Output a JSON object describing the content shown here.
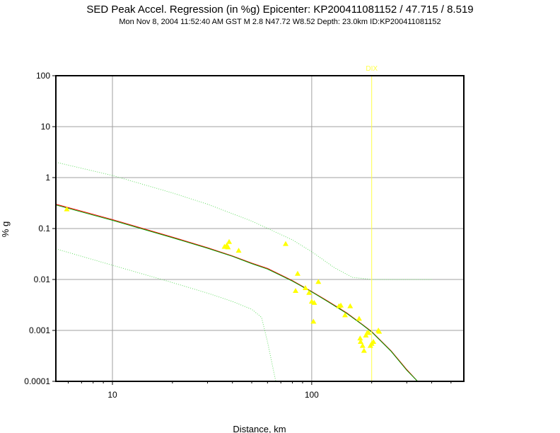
{
  "header": {
    "title": "SED Peak Accel. Regression (in %g) Epicenter: KP200411081152 / 47.715 / 8.519",
    "subtitle": "Mon Nov  8, 2004 11:52:40 AM GST   M 2.8   N47.72 W8.52   Depth: 23.0km   ID:KP200411081152"
  },
  "colors": {
    "background": "#ffffff",
    "frame": "#000000",
    "grid": "#a0a0a0",
    "observations": "#ffff00",
    "regression_red": "#ff0000",
    "regression_green": "#00a000",
    "bounds": "#66dd66",
    "station_marker": "#ffff44"
  },
  "chart_data": {
    "type": "scatter",
    "title": "SED Peak Accel. Regression (in %g) Epicenter: KP200411081152 / 47.715 / 8.519",
    "xlabel": "Distance, km",
    "ylabel": "% g",
    "x_scale": "log",
    "y_scale": "log",
    "xlim": [
      5.2,
      580
    ],
    "ylim": [
      0.0001,
      100
    ],
    "x_ticks": [
      10,
      100
    ],
    "x_tick_labels": [
      "10",
      "100"
    ],
    "y_ticks": [
      0.0001,
      0.001,
      0.01,
      0.1,
      1,
      10,
      100
    ],
    "y_tick_labels": [
      "0.0001",
      "0.001",
      "0.01",
      "0.1",
      "1",
      "10",
      "100"
    ],
    "grid": true,
    "station_marker": {
      "label": "DIX",
      "x": 200
    },
    "observations": {
      "marker": "triangle",
      "x": [
        5.9,
        36.5,
        37.5,
        38,
        38.5,
        43,
        74,
        83,
        85,
        93,
        97,
        100,
        102,
        103,
        108,
        137,
        140,
        147,
        156,
        173,
        175,
        176,
        180,
        183,
        187,
        190,
        193,
        197,
        200,
        204,
        216,
        218
      ],
      "y": [
        0.24,
        0.044,
        0.047,
        0.043,
        0.055,
        0.037,
        0.05,
        0.006,
        0.013,
        0.0068,
        0.0055,
        0.0037,
        0.0015,
        0.0035,
        0.009,
        0.003,
        0.0031,
        0.002,
        0.003,
        0.0017,
        0.0007,
        0.0006,
        0.0005,
        0.0004,
        0.0008,
        0.0009,
        0.0009,
        0.0005,
        0.00055,
        0.0006,
        0.001,
        0.00095
      ]
    },
    "series": [
      {
        "color": "#ff0000",
        "x": [
          5.2,
          10,
          20,
          30,
          40,
          50,
          60,
          80,
          100,
          120,
          150,
          180,
          200,
          250,
          300,
          340
        ],
        "y": [
          0.3,
          0.15,
          0.068,
          0.042,
          0.029,
          0.021,
          0.0165,
          0.0095,
          0.0058,
          0.0038,
          0.0022,
          0.0013,
          0.00095,
          0.0004,
          0.00017,
          0.0001
        ]
      },
      {
        "color": "#00a000",
        "x": [
          5.2,
          10,
          20,
          30,
          40,
          50,
          60,
          80,
          100,
          120,
          150,
          180,
          200,
          250,
          300,
          340
        ],
        "y": [
          0.29,
          0.145,
          0.066,
          0.041,
          0.0285,
          0.0205,
          0.016,
          0.0093,
          0.0057,
          0.0037,
          0.00215,
          0.00128,
          0.00093,
          0.00039,
          0.000165,
          0.0001
        ]
      },
      {
        "color": "#66dd66",
        "style": "dotted",
        "x": [
          5.2,
          10,
          20,
          30,
          50,
          80,
          100,
          130,
          160,
          200,
          300,
          400
        ],
        "y": [
          2.0,
          1.1,
          0.5,
          0.3,
          0.14,
          0.06,
          0.035,
          0.017,
          0.011,
          0.01,
          0.01,
          0.01
        ]
      },
      {
        "color": "#66dd66",
        "style": "dotted",
        "x": [
          5.2,
          10,
          20,
          30,
          40,
          50,
          56,
          60,
          66
        ],
        "y": [
          0.04,
          0.019,
          0.0087,
          0.0054,
          0.0037,
          0.0026,
          0.0018,
          0.0006,
          0.0001
        ]
      }
    ]
  }
}
